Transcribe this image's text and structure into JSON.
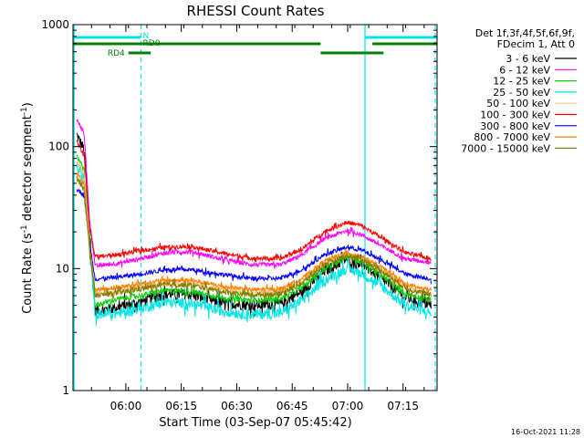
{
  "chart_data": {
    "type": "line",
    "title": "RHESSI Count Rates",
    "xlabel": "Start Time (03-Sep-07 05:45:42)",
    "ylabel_prefix": "Count Rate (s",
    "ylabel_sup": "-1",
    "ylabel_mid": " detector segment",
    "ylabel_sup2": "-1",
    "ylabel_suffix": ")",
    "y_scale": "log",
    "ylim": [
      1,
      1000
    ],
    "xlim_minutes": [
      0,
      98.5
    ],
    "x_ticks": [
      {
        "label": "06:00",
        "minute": 14.3
      },
      {
        "label": "06:15",
        "minute": 29.3
      },
      {
        "label": "06:30",
        "minute": 44.3
      },
      {
        "label": "06:45",
        "minute": 59.3
      },
      {
        "label": "07:00",
        "minute": 74.3
      },
      {
        "label": "07:15",
        "minute": 89.3
      }
    ],
    "y_ticks": [
      {
        "label": "1",
        "value": 1
      },
      {
        "label": "10",
        "value": 10
      },
      {
        "label": "100",
        "value": 100
      },
      {
        "label": "1000",
        "value": 1000
      }
    ],
    "legend_title_line1": "Det 1f,3f,4f,5f,6f,9f,",
    "legend_title_line2": "FDecim 1, Att 0",
    "legend_position": "top-right outside",
    "footer_stamp": "16-Oct-2021 11:28",
    "state_bars": [
      {
        "label": "N",
        "color": "#00e5e5",
        "segments": [
          [
            0,
            18.4
          ],
          [
            79,
            98.5
          ]
        ],
        "level": "top"
      },
      {
        "label": "RD0",
        "color": "#007f00",
        "segments": [
          [
            0,
            67
          ],
          [
            81,
            98.5
          ]
        ],
        "level": "mid"
      },
      {
        "label": "",
        "color": "#007f00",
        "segments": [
          [
            67,
            84
          ]
        ],
        "level": "mid_low"
      },
      {
        "label": "RD4",
        "color": "#007f00",
        "segments": [
          [
            15,
            21
          ]
        ],
        "level": "low"
      }
    ],
    "vertical_markers": [
      {
        "minute": 0.3,
        "style": "solid",
        "color": "#00e5e5"
      },
      {
        "minute": 18.4,
        "style": "dashed",
        "color": "#00e5e5"
      },
      {
        "minute": 79.0,
        "style": "solid",
        "color": "#00e5e5"
      },
      {
        "minute": 98.0,
        "style": "dashed",
        "color": "#00e5e5"
      }
    ],
    "series": [
      {
        "name": "3 - 6 keV",
        "color": "#000000",
        "noise": 0.1,
        "points": [
          [
            1,
            125
          ],
          [
            3,
            95
          ],
          [
            4.5,
            20
          ],
          [
            6,
            4.5
          ],
          [
            12,
            4.8
          ],
          [
            18,
            5.3
          ],
          [
            25,
            6.2
          ],
          [
            32,
            6.1
          ],
          [
            40,
            5.2
          ],
          [
            48,
            5.0
          ],
          [
            56,
            5.1
          ],
          [
            62,
            6.5
          ],
          [
            68,
            9.5
          ],
          [
            74,
            12.0
          ],
          [
            78,
            11.0
          ],
          [
            84,
            8.0
          ],
          [
            90,
            5.8
          ],
          [
            97,
            5.0
          ]
        ]
      },
      {
        "name": "6 - 12 keV",
        "color": "#ff00ff",
        "noise": 0.04,
        "points": [
          [
            1,
            165
          ],
          [
            3,
            130
          ],
          [
            4.5,
            25
          ],
          [
            6,
            10.5
          ],
          [
            12,
            11.0
          ],
          [
            18,
            12.0
          ],
          [
            25,
            13.5
          ],
          [
            32,
            13.8
          ],
          [
            40,
            12.0
          ],
          [
            48,
            10.8
          ],
          [
            56,
            10.7
          ],
          [
            62,
            13.0
          ],
          [
            68,
            17.5
          ],
          [
            74,
            20.5
          ],
          [
            78,
            19.0
          ],
          [
            84,
            15.0
          ],
          [
            90,
            12.0
          ],
          [
            97,
            11.2
          ]
        ]
      },
      {
        "name": "12 - 25 keV",
        "color": "#00d000",
        "noise": 0.05,
        "points": [
          [
            1,
            85
          ],
          [
            3,
            65
          ],
          [
            4.5,
            18
          ],
          [
            6,
            5.0
          ],
          [
            12,
            5.6
          ],
          [
            18,
            6.0
          ],
          [
            25,
            6.6
          ],
          [
            32,
            6.5
          ],
          [
            40,
            5.8
          ],
          [
            48,
            5.5
          ],
          [
            56,
            5.6
          ],
          [
            62,
            7.0
          ],
          [
            68,
            10.0
          ],
          [
            74,
            12.5
          ],
          [
            78,
            11.5
          ],
          [
            84,
            8.5
          ],
          [
            90,
            6.2
          ],
          [
            97,
            5.5
          ]
        ]
      },
      {
        "name": "25 - 50 keV",
        "color": "#00e5e5",
        "noise": 0.1,
        "points": [
          [
            1,
            70
          ],
          [
            3,
            55
          ],
          [
            4.5,
            14
          ],
          [
            6,
            4.2
          ],
          [
            12,
            4.3
          ],
          [
            18,
            4.7
          ],
          [
            25,
            5.3
          ],
          [
            32,
            5.2
          ],
          [
            40,
            4.5
          ],
          [
            48,
            4.2
          ],
          [
            56,
            4.3
          ],
          [
            62,
            5.5
          ],
          [
            68,
            8.0
          ],
          [
            74,
            10.0
          ],
          [
            78,
            9.2
          ],
          [
            84,
            7.0
          ],
          [
            90,
            5.0
          ],
          [
            97,
            4.3
          ]
        ]
      },
      {
        "name": "50 - 100 keV",
        "color": "#ffc080",
        "noise": 0.05,
        "points": [
          [
            1,
            75
          ],
          [
            3,
            60
          ],
          [
            4.5,
            16
          ],
          [
            6,
            6.2
          ],
          [
            12,
            6.5
          ],
          [
            18,
            7.0
          ],
          [
            25,
            7.5
          ],
          [
            32,
            7.4
          ],
          [
            40,
            6.8
          ],
          [
            48,
            6.3
          ],
          [
            56,
            6.4
          ],
          [
            62,
            7.8
          ],
          [
            68,
            11.0
          ],
          [
            74,
            13.0
          ],
          [
            78,
            12.0
          ],
          [
            84,
            9.3
          ],
          [
            90,
            7.0
          ],
          [
            97,
            6.2
          ]
        ]
      },
      {
        "name": "100 - 300 keV",
        "color": "#ff0000",
        "noise": 0.04,
        "points": [
          [
            1,
            110
          ],
          [
            3,
            85
          ],
          [
            4.5,
            22
          ],
          [
            6,
            12.5
          ],
          [
            12,
            13.0
          ],
          [
            18,
            14.0
          ],
          [
            25,
            15.0
          ],
          [
            32,
            15.2
          ],
          [
            40,
            13.5
          ],
          [
            48,
            12.2
          ],
          [
            56,
            12.0
          ],
          [
            62,
            14.5
          ],
          [
            68,
            20.0
          ],
          [
            74,
            24.0
          ],
          [
            78,
            22.5
          ],
          [
            84,
            17.5
          ],
          [
            90,
            13.5
          ],
          [
            97,
            12.0
          ]
        ]
      },
      {
        "name": "300 - 800 keV",
        "color": "#0000ff",
        "noise": 0.04,
        "points": [
          [
            1,
            45
          ],
          [
            3,
            40
          ],
          [
            4.5,
            16
          ],
          [
            6,
            8.2
          ],
          [
            12,
            8.5
          ],
          [
            18,
            9.0
          ],
          [
            25,
            9.8
          ],
          [
            32,
            9.8
          ],
          [
            40,
            9.0
          ],
          [
            48,
            8.3
          ],
          [
            56,
            8.3
          ],
          [
            62,
            9.8
          ],
          [
            68,
            13.0
          ],
          [
            74,
            15.0
          ],
          [
            78,
            14.2
          ],
          [
            84,
            11.5
          ],
          [
            90,
            9.0
          ],
          [
            97,
            8.2
          ]
        ]
      },
      {
        "name": "800 - 7000 keV",
        "color": "#ff8000",
        "noise": 0.04,
        "points": [
          [
            1,
            60
          ],
          [
            3,
            50
          ],
          [
            4.5,
            15
          ],
          [
            6,
            6.7
          ],
          [
            12,
            7.0
          ],
          [
            18,
            7.5
          ],
          [
            25,
            8.0
          ],
          [
            32,
            8.0
          ],
          [
            40,
            7.2
          ],
          [
            48,
            6.7
          ],
          [
            56,
            6.8
          ],
          [
            62,
            8.3
          ],
          [
            68,
            11.5
          ],
          [
            74,
            13.5
          ],
          [
            78,
            12.6
          ],
          [
            84,
            10.0
          ],
          [
            90,
            7.4
          ],
          [
            97,
            6.6
          ]
        ]
      },
      {
        "name": "7000 - 15000 keV",
        "color": "#808000",
        "noise": 0.05,
        "points": [
          [
            1,
            55
          ],
          [
            3,
            45
          ],
          [
            4.5,
            14
          ],
          [
            6,
            6.0
          ],
          [
            12,
            6.3
          ],
          [
            18,
            6.8
          ],
          [
            25,
            7.4
          ],
          [
            32,
            7.3
          ],
          [
            40,
            6.5
          ],
          [
            48,
            6.1
          ],
          [
            56,
            6.2
          ],
          [
            62,
            7.6
          ],
          [
            68,
            10.8
          ],
          [
            74,
            12.8
          ],
          [
            78,
            12.0
          ],
          [
            84,
            9.4
          ],
          [
            90,
            6.9
          ],
          [
            97,
            6.0
          ]
        ]
      }
    ]
  }
}
